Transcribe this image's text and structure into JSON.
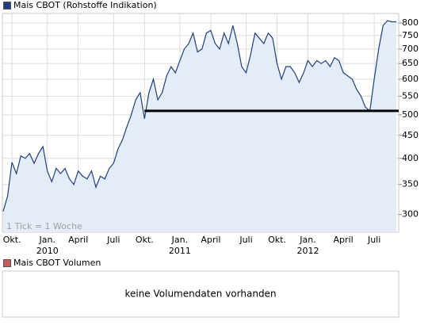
{
  "chart_data": {
    "type": "line",
    "annotation": "1 Tick = 1 Woche",
    "log_scale": true,
    "grid": true,
    "categories": [
      null,
      null,
      "Okt.",
      null,
      null,
      null,
      null,
      null,
      null,
      null,
      "Jan.\n2010",
      null,
      null,
      null,
      null,
      null,
      null,
      "April",
      null,
      null,
      null,
      null,
      null,
      null,
      null,
      "Juli",
      null,
      null,
      null,
      null,
      null,
      null,
      "Okt.",
      null,
      null,
      null,
      null,
      null,
      null,
      null,
      "Jan.\n2011",
      null,
      null,
      null,
      null,
      null,
      null,
      "April",
      null,
      null,
      null,
      null,
      null,
      null,
      null,
      "Juli",
      null,
      null,
      null,
      null,
      null,
      null,
      "Okt.",
      null,
      null,
      null,
      null,
      null,
      null,
      "Jan.\n2012",
      null,
      null,
      null,
      null,
      null,
      null,
      null,
      "April",
      null,
      null,
      null,
      null,
      null,
      null,
      "Juli",
      null,
      null,
      null,
      null,
      null
    ],
    "series": [
      {
        "name": "Mais CBOT (Rohstoffe Indikation)",
        "color": "#1f3f7a",
        "fill": "#e4ecf8",
        "values": [
          305,
          330,
          392,
          370,
          405,
          400,
          410,
          390,
          410,
          425,
          375,
          355,
          380,
          370,
          380,
          360,
          350,
          375,
          365,
          360,
          375,
          345,
          365,
          360,
          380,
          390,
          420,
          440,
          470,
          500,
          540,
          560,
          490,
          560,
          600,
          540,
          560,
          610,
          640,
          620,
          660,
          700,
          720,
          760,
          690,
          700,
          760,
          770,
          720,
          700,
          760,
          720,
          790,
          720,
          640,
          620,
          680,
          760,
          740,
          720,
          760,
          740,
          650,
          600,
          640,
          640,
          620,
          590,
          620,
          660,
          640,
          660,
          650,
          660,
          640,
          670,
          660,
          620,
          610,
          600,
          570,
          550,
          520,
          510,
          600,
          700,
          790,
          810,
          805,
          805
        ]
      }
    ],
    "hline": {
      "value": 510,
      "color": "#000000"
    },
    "ylim": [
      274,
      840
    ],
    "yticks": [
      300,
      350,
      400,
      450,
      500,
      550,
      600,
      650,
      700,
      750,
      800
    ],
    "volume_panel": {
      "title": "Mais CBOT Volumen",
      "color": "#c85a5a",
      "message": "keine Volumendaten vorhanden"
    }
  }
}
